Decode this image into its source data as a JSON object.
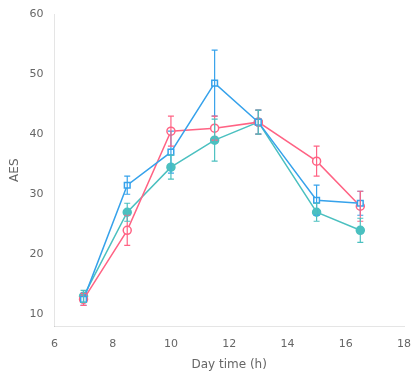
{
  "chart_data": {
    "type": "line",
    "xlabel": "Day time (h)",
    "ylabel": "AES",
    "x": [
      7,
      8.5,
      10,
      11.5,
      13,
      15,
      16.5
    ],
    "xlim": [
      6,
      18
    ],
    "xticks": [
      6,
      8,
      10,
      12,
      14,
      16,
      18
    ],
    "ylim": [
      8,
      60
    ],
    "yticks": [
      10,
      20,
      30,
      40,
      50,
      60
    ],
    "grid": false,
    "series": [
      {
        "marker": "open_square",
        "values": [
          12.5,
          31.5,
          37.0,
          48.5,
          42.0,
          29.0,
          28.5
        ],
        "yerr": [
          1.0,
          1.5,
          3.5,
          5.5,
          2.0,
          2.5,
          2.0
        ]
      },
      {
        "marker": "open_circle",
        "values": [
          12.5,
          24.0,
          40.5,
          41.0,
          42.0,
          35.5,
          28.0
        ],
        "yerr": [
          1.0,
          2.5,
          2.5,
          2.0,
          2.0,
          2.5,
          2.5
        ]
      },
      {
        "marker": "filled_circle",
        "values": [
          13.0,
          27.0,
          34.5,
          39.0,
          42.0,
          27.0,
          24.0
        ],
        "yerr": [
          1.0,
          1.5,
          2.0,
          3.5,
          2.0,
          1.5,
          2.0
        ]
      }
    ]
  }
}
